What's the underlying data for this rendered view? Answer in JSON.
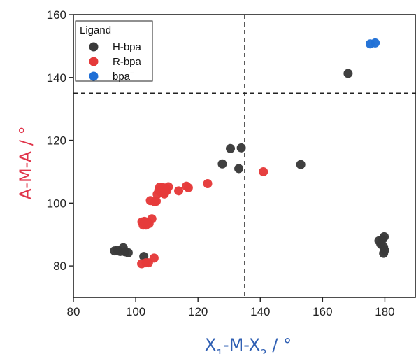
{
  "chart_data": {
    "type": "scatter",
    "xlabel": {
      "main": "X",
      "sub1": "1",
      "mid": "-M-X",
      "sub2": "2",
      "tail": " / °",
      "color": "#2f5fb3"
    },
    "ylabel": {
      "text": "A-M-A / °",
      "color": "#e0344a"
    },
    "xlim": [
      80,
      190
    ],
    "ylim": [
      70,
      160
    ],
    "xticks": [
      80,
      100,
      120,
      140,
      160,
      180
    ],
    "yticks": [
      80,
      100,
      120,
      140,
      160
    ],
    "grid": false,
    "reference_lines": {
      "x": 135,
      "y": 135,
      "style": "dashed"
    },
    "legend": {
      "title": "Ligand",
      "placement": "top-left",
      "entries": [
        {
          "name": "H-bpa",
          "sup": "",
          "color": "#3a3a3a"
        },
        {
          "name": "R-bpa",
          "sup": "",
          "color": "#e53a3a"
        },
        {
          "name": "bpa",
          "sup": "−",
          "color": "#1f6fd6"
        }
      ]
    },
    "series": [
      {
        "name": "H-bpa",
        "color": "#3a3a3a",
        "points": [
          [
            93.2,
            84.8
          ],
          [
            94.2,
            85.0
          ],
          [
            95.0,
            84.6
          ],
          [
            96.0,
            85.8
          ],
          [
            96.6,
            84.5
          ],
          [
            97.6,
            84.2
          ],
          [
            102.6,
            83.0
          ],
          [
            127.8,
            112.5
          ],
          [
            130.4,
            117.4
          ],
          [
            133.1,
            111.0
          ],
          [
            133.9,
            117.6
          ],
          [
            153.0,
            112.3
          ],
          [
            168.2,
            141.3
          ],
          [
            178.1,
            88.0
          ],
          [
            178.7,
            87.0
          ],
          [
            179.3,
            88.5
          ],
          [
            179.8,
            89.3
          ],
          [
            179.6,
            86.0
          ],
          [
            179.9,
            85.0
          ],
          [
            179.6,
            84.0
          ]
        ]
      },
      {
        "name": "R-bpa",
        "color": "#e53a3a",
        "points": [
          [
            101.9,
            80.7
          ],
          [
            103.3,
            81.0
          ],
          [
            104.1,
            81.0
          ],
          [
            105.9,
            82.5
          ],
          [
            102.0,
            94.0
          ],
          [
            102.4,
            93.0
          ],
          [
            102.8,
            94.2
          ],
          [
            103.3,
            93.0
          ],
          [
            103.8,
            94.0
          ],
          [
            104.3,
            93.5
          ],
          [
            105.2,
            95.0
          ],
          [
            104.7,
            100.8
          ],
          [
            106.1,
            100.4
          ],
          [
            106.6,
            100.6
          ],
          [
            106.9,
            102.8
          ],
          [
            107.4,
            104.0
          ],
          [
            107.7,
            105.1
          ],
          [
            108.1,
            103.5
          ],
          [
            108.6,
            105.0
          ],
          [
            108.8,
            104.2
          ],
          [
            109.2,
            102.9
          ],
          [
            109.7,
            104.7
          ],
          [
            110.0,
            104.0
          ],
          [
            110.5,
            105.2
          ],
          [
            109.5,
            103.5
          ],
          [
            113.8,
            103.9
          ],
          [
            116.3,
            105.4
          ],
          [
            116.9,
            104.9
          ],
          [
            123.1,
            106.2
          ],
          [
            141.0,
            110.0
          ]
        ]
      },
      {
        "name": "bpa⁻",
        "color": "#1f6fd6",
        "points": [
          [
            175.3,
            150.7
          ],
          [
            176.9,
            151.0
          ]
        ]
      }
    ]
  }
}
